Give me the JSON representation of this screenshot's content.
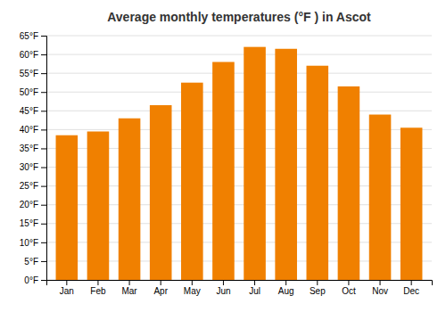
{
  "chart_data": {
    "type": "bar",
    "title": "Average monthly temperatures (°F ) in Ascot",
    "categories": [
      "Jan",
      "Feb",
      "Mar",
      "Apr",
      "May",
      "Jun",
      "Jul",
      "Aug",
      "Sep",
      "Oct",
      "Nov",
      "Dec"
    ],
    "values": [
      38.5,
      39.5,
      43.0,
      46.5,
      52.5,
      58.0,
      62.0,
      61.5,
      57.0,
      51.5,
      44.0,
      40.5
    ],
    "color": "#F08000",
    "ylim": [
      0,
      65
    ],
    "yticks": [
      {
        "value": 0,
        "label": "0°F"
      },
      {
        "value": 5,
        "label": "5°F"
      },
      {
        "value": 10,
        "label": "10°F"
      },
      {
        "value": 15,
        "label": "15°F"
      },
      {
        "value": 20,
        "label": "20°F"
      },
      {
        "value": 25,
        "label": "25°F"
      },
      {
        "value": 30,
        "label": "30°F"
      },
      {
        "value": 35,
        "label": "35°F"
      },
      {
        "value": 40,
        "label": "40°F"
      },
      {
        "value": 45,
        "label": "45°F"
      },
      {
        "value": 50,
        "label": "50°F"
      },
      {
        "value": 55,
        "label": "55°F"
      },
      {
        "value": 60,
        "label": "60°F"
      },
      {
        "value": 65,
        "label": "65°F"
      }
    ],
    "grid": true
  }
}
